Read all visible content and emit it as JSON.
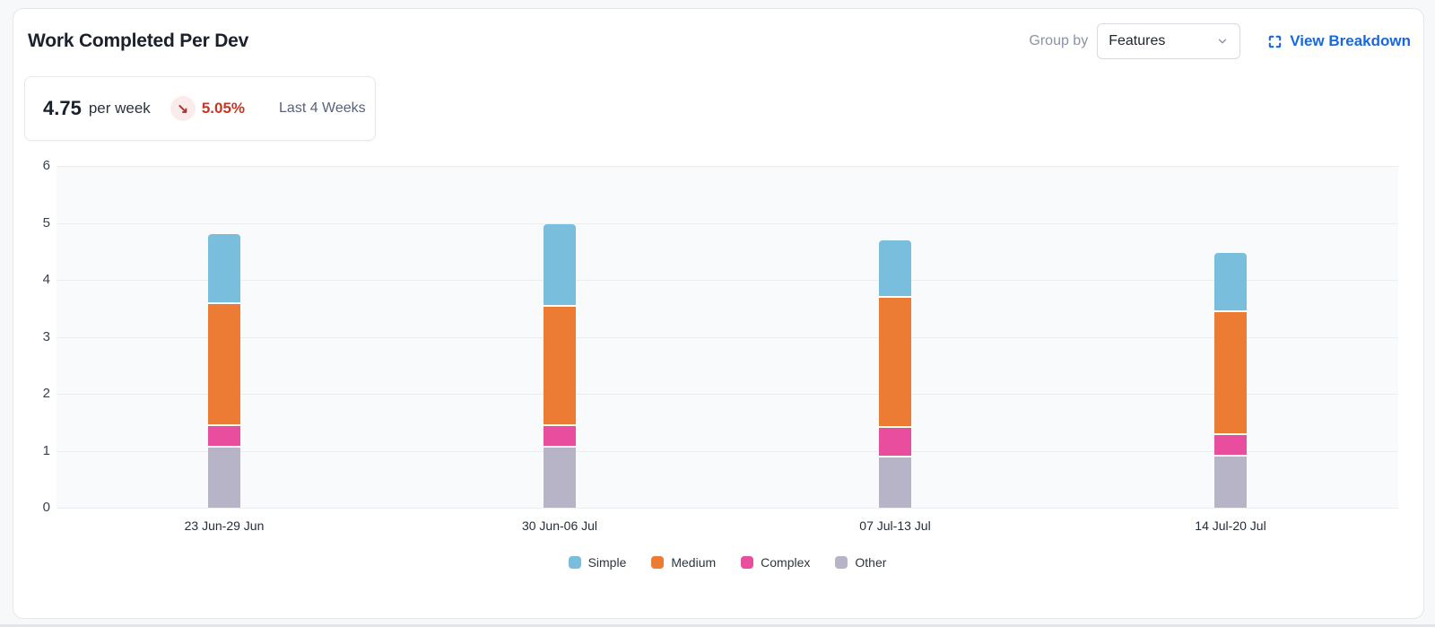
{
  "header": {
    "title": "Work Completed Per Dev",
    "group_by_label": "Group by",
    "group_by_value": "Features",
    "view_breakdown_label": "View Breakdown",
    "link_color": "#1868db"
  },
  "summary": {
    "value": "4.75",
    "unit": "per week",
    "trend_arrow": "↘",
    "trend_direction": "down",
    "trend_percent": "5.05%",
    "trend_color": "#ca3521",
    "period": "Last 4 Weeks"
  },
  "chart_data": {
    "type": "bar",
    "stacked": true,
    "title": "",
    "xlabel": "",
    "ylabel": "",
    "categories": [
      "23 Jun-29 Jun",
      "30 Jun-06 Jul",
      "07 Jul-13 Jul",
      "14 Jul-20 Jul"
    ],
    "series": [
      {
        "name": "Other",
        "color": "#b6b4c6",
        "values": [
          1.05,
          1.05,
          0.88,
          0.9
        ]
      },
      {
        "name": "Complex",
        "color": "#e94d9d",
        "values": [
          0.38,
          0.38,
          0.52,
          0.38
        ]
      },
      {
        "name": "Medium",
        "color": "#ec7c34",
        "values": [
          2.15,
          2.1,
          2.28,
          2.15
        ]
      },
      {
        "name": "Simple",
        "color": "#79bedd",
        "values": [
          1.22,
          1.45,
          1.02,
          1.05
        ]
      }
    ],
    "stack_order_note": "series listed bottom-to-top",
    "legend_order": [
      "Simple",
      "Medium",
      "Complex",
      "Other"
    ],
    "legend_position": "bottom",
    "ylim": [
      0,
      6
    ],
    "yticks": [
      0,
      1,
      2,
      3,
      4,
      5,
      6
    ],
    "grid": true,
    "plot_background": "#f8fafc",
    "gridline_color": "#eaedf2"
  }
}
